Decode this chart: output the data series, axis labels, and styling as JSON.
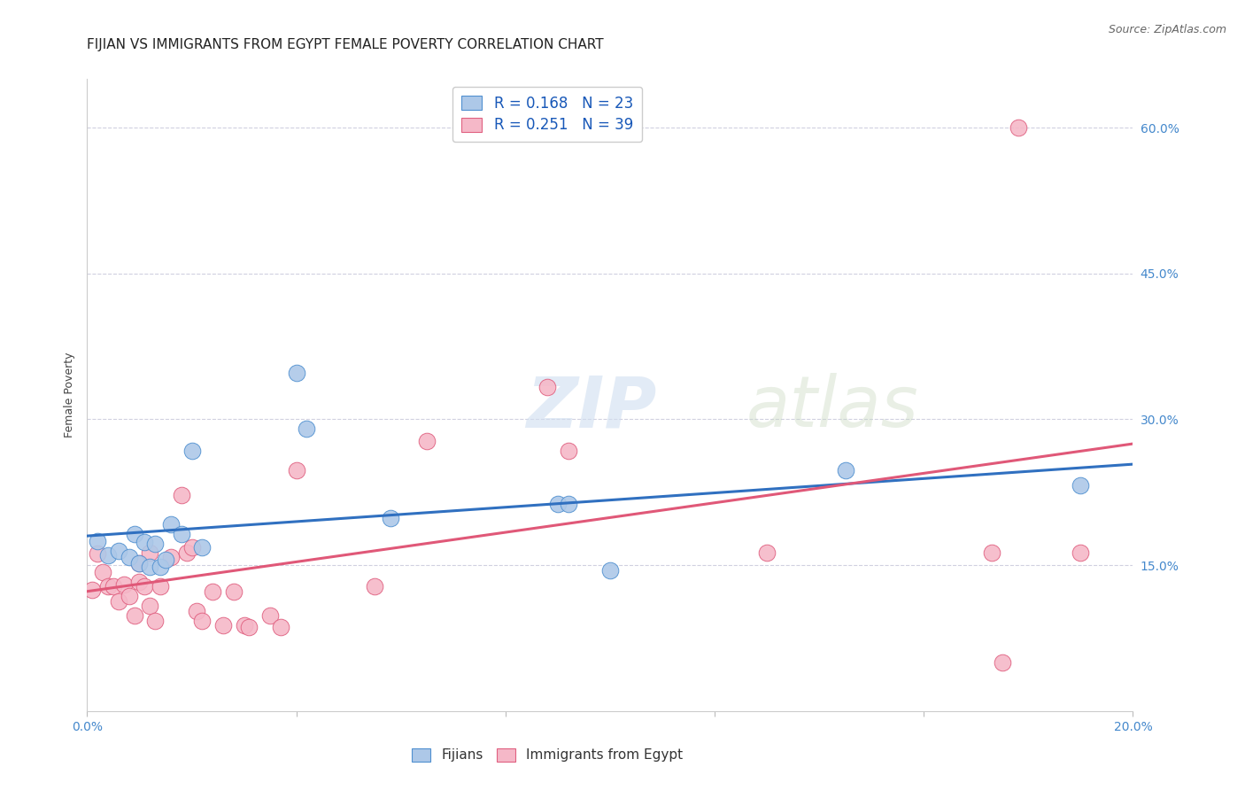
{
  "title": "FIJIAN VS IMMIGRANTS FROM EGYPT FEMALE POVERTY CORRELATION CHART",
  "source": "Source: ZipAtlas.com",
  "ylabel": "Female Poverty",
  "watermark_zip": "ZIP",
  "watermark_atlas": "atlas",
  "xlim": [
    0.0,
    0.2
  ],
  "ylim": [
    0.0,
    0.65
  ],
  "xticks": [
    0.0,
    0.04,
    0.08,
    0.12,
    0.16,
    0.2
  ],
  "xticklabels": [
    "0.0%",
    "",
    "",
    "",
    "",
    "20.0%"
  ],
  "yticks": [
    0.0,
    0.15,
    0.3,
    0.45,
    0.6
  ],
  "yticklabels": [
    "",
    "15.0%",
    "30.0%",
    "45.0%",
    "60.0%"
  ],
  "fijian_fill": "#adc8e8",
  "fijian_edge": "#5090d0",
  "egypt_fill": "#f5b8c8",
  "egypt_edge": "#e06080",
  "fijian_line_color": "#3070c0",
  "egypt_line_color": "#e05878",
  "legend_color": "#1858b8",
  "fijian_R": "0.168",
  "fijian_N": "23",
  "egypt_R": "0.251",
  "egypt_N": "39",
  "legend_labels": [
    "Fijians",
    "Immigrants from Egypt"
  ],
  "fijian_x": [
    0.002,
    0.004,
    0.006,
    0.008,
    0.009,
    0.01,
    0.011,
    0.012,
    0.013,
    0.014,
    0.015,
    0.016,
    0.018,
    0.02,
    0.022,
    0.04,
    0.042,
    0.058,
    0.09,
    0.092,
    0.1,
    0.145,
    0.19
  ],
  "fijian_y": [
    0.175,
    0.16,
    0.165,
    0.158,
    0.182,
    0.152,
    0.174,
    0.148,
    0.172,
    0.148,
    0.156,
    0.192,
    0.182,
    0.268,
    0.168,
    0.348,
    0.29,
    0.198,
    0.213,
    0.213,
    0.145,
    0.248,
    0.232
  ],
  "egypt_x": [
    0.001,
    0.002,
    0.003,
    0.004,
    0.005,
    0.006,
    0.007,
    0.008,
    0.009,
    0.01,
    0.01,
    0.011,
    0.012,
    0.012,
    0.013,
    0.014,
    0.016,
    0.018,
    0.019,
    0.02,
    0.021,
    0.022,
    0.024,
    0.026,
    0.028,
    0.03,
    0.031,
    0.035,
    0.037,
    0.04,
    0.055,
    0.065,
    0.088,
    0.092,
    0.13,
    0.173,
    0.175,
    0.178,
    0.19
  ],
  "egypt_y": [
    0.125,
    0.162,
    0.143,
    0.128,
    0.128,
    0.113,
    0.13,
    0.118,
    0.098,
    0.152,
    0.133,
    0.128,
    0.163,
    0.108,
    0.093,
    0.128,
    0.158,
    0.222,
    0.163,
    0.168,
    0.103,
    0.093,
    0.123,
    0.088,
    0.123,
    0.088,
    0.086,
    0.098,
    0.086,
    0.248,
    0.128,
    0.278,
    0.333,
    0.268,
    0.163,
    0.163,
    0.05,
    0.6,
    0.163
  ],
  "grid_color": "#d0d0e0",
  "bg_color": "#ffffff",
  "title_fontsize": 11,
  "ylabel_fontsize": 9,
  "tick_fontsize": 10,
  "tick_color": "#4488cc",
  "source_fontsize": 9,
  "scatter_size": 180,
  "line_width": 2.2
}
